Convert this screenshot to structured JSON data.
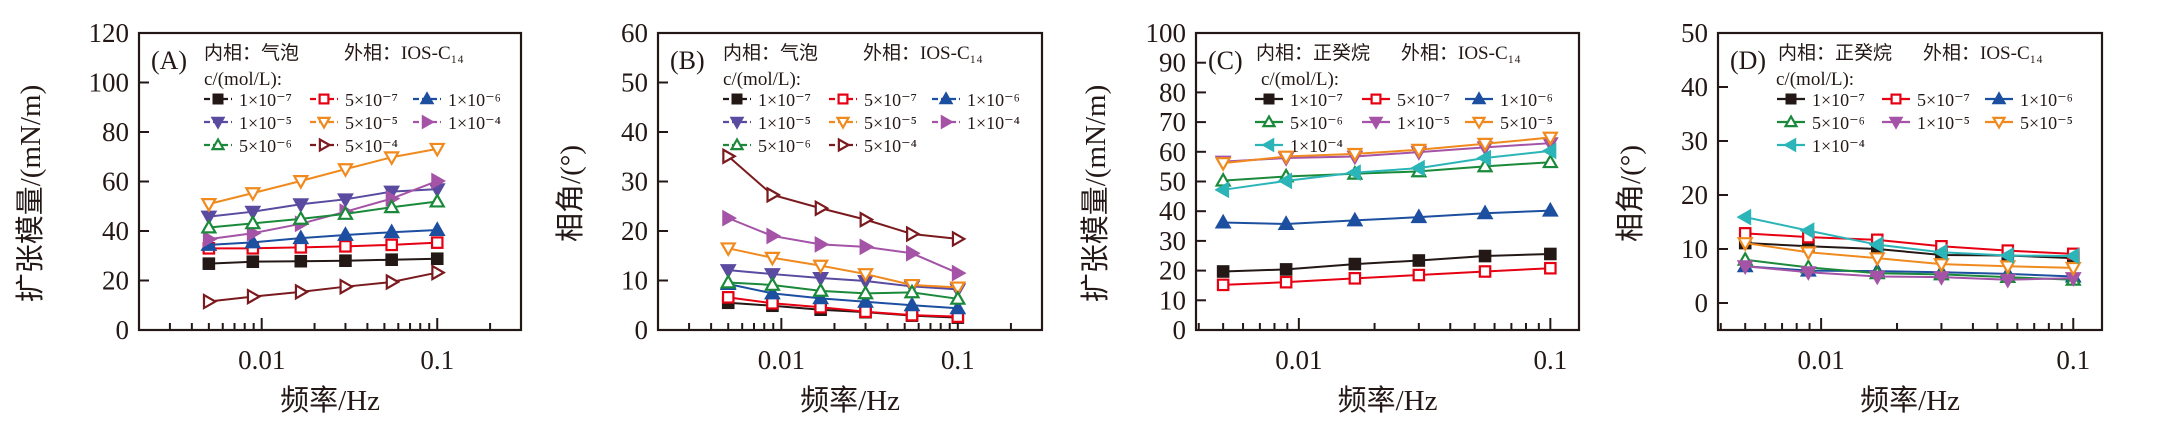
{
  "chart_data": [
    {
      "type": "line",
      "panel_label": "(A)",
      "inner_phase": "内相：气泡",
      "outer_phase": "外相：IOS-C₁₄",
      "legend_title": "c/(mol/L):",
      "xlabel": "频率/Hz",
      "ylabel": "扩张模量/(mN/m)",
      "xscale": "log",
      "xlim": [
        0.002,
        0.3
      ],
      "xticks": [
        0.01,
        0.1
      ],
      "xtick_labels": [
        "0.01",
        "0.1"
      ],
      "ylim": [
        0,
        120
      ],
      "yticks": [
        0,
        20,
        40,
        60,
        80,
        100,
        120
      ],
      "grid": false,
      "legend_position": "top",
      "x": [
        0.005,
        0.0089,
        0.0167,
        0.03,
        0.055,
        0.1
      ],
      "series": [
        {
          "name": "1×10⁻⁷",
          "color": "#231815",
          "marker": "square",
          "filled": true,
          "values": [
            26.8,
            27.6,
            27.8,
            28.0,
            28.4,
            28.8
          ]
        },
        {
          "name": "5×10⁻⁷",
          "color": "#e60012",
          "marker": "square",
          "filled": false,
          "values": [
            33.0,
            33.0,
            33.4,
            33.8,
            34.4,
            35.3
          ]
        },
        {
          "name": "1×10⁻⁶",
          "color": "#1d4fa0",
          "marker": "triangle-up",
          "filled": true,
          "values": [
            34.4,
            35.4,
            37.1,
            38.4,
            39.5,
            40.4
          ]
        },
        {
          "name": "1×10⁻⁵",
          "color": "#5a4aa0",
          "marker": "triangle-down",
          "filled": true,
          "values": [
            45.8,
            47.8,
            50.8,
            52.8,
            55.9,
            56.9
          ]
        },
        {
          "name": "5×10⁻⁵",
          "color": "#f08a1e",
          "marker": "triangle-down",
          "filled": false,
          "values": [
            50.9,
            55.3,
            60.2,
            65.0,
            69.8,
            73.2
          ]
        },
        {
          "name": "1×10⁻⁴",
          "color": "#a453a6",
          "marker": "triangle-right",
          "filled": true,
          "values": [
            36.7,
            39.1,
            42.9,
            47.8,
            53.1,
            60.2
          ]
        },
        {
          "name": "5×10⁻⁶",
          "color": "#1a8a3a",
          "marker": "triangle-up",
          "filled": false,
          "values": [
            41.4,
            43.1,
            44.9,
            46.9,
            49.6,
            51.9
          ]
        },
        {
          "name": "5×10⁻⁴",
          "color": "#7a1a1e",
          "marker": "triangle-right",
          "filled": false,
          "values": [
            11.5,
            13.5,
            15.4,
            17.5,
            19.4,
            23.2
          ]
        }
      ]
    },
    {
      "type": "line",
      "panel_label": "(B)",
      "inner_phase": "内相：气泡",
      "outer_phase": "外相：IOS-C₁₄",
      "legend_title": "c/(mol/L):",
      "xlabel": "频率/Hz",
      "ylabel": "相角/(°)",
      "xscale": "log",
      "xlim": [
        0.002,
        0.3
      ],
      "xticks": [
        0.01,
        0.1
      ],
      "xtick_labels": [
        "0.01",
        "0.1"
      ],
      "ylim": [
        0,
        60
      ],
      "yticks": [
        0,
        10,
        20,
        30,
        40,
        50,
        60
      ],
      "grid": false,
      "legend_position": "top",
      "x": [
        0.005,
        0.0089,
        0.0167,
        0.03,
        0.055,
        0.1
      ],
      "series": [
        {
          "name": "1×10⁻⁷",
          "color": "#231815",
          "marker": "square",
          "filled": true,
          "values": [
            5.5,
            4.9,
            4.1,
            3.6,
            2.9,
            2.5
          ]
        },
        {
          "name": "5×10⁻⁷",
          "color": "#e60012",
          "marker": "square",
          "filled": false,
          "values": [
            6.6,
            5.4,
            4.6,
            3.7,
            3.0,
            2.7
          ]
        },
        {
          "name": "1×10⁻⁶",
          "color": "#1d4fa0",
          "marker": "triangle-up",
          "filled": true,
          "values": [
            9.3,
            7.4,
            6.4,
            5.7,
            5.0,
            4.4
          ]
        },
        {
          "name": "1×10⁻⁵",
          "color": "#5a4aa0",
          "marker": "triangle-down",
          "filled": true,
          "values": [
            12.1,
            11.3,
            10.5,
            9.9,
            8.8,
            8.2
          ]
        },
        {
          "name": "5×10⁻⁵",
          "color": "#f08a1e",
          "marker": "triangle-down",
          "filled": false,
          "values": [
            16.5,
            14.6,
            13.0,
            11.3,
            9.1,
            8.6
          ]
        },
        {
          "name": "1×10⁻⁴",
          "color": "#a453a6",
          "marker": "triangle-right",
          "filled": true,
          "values": [
            22.6,
            19.0,
            17.3,
            16.8,
            15.5,
            11.5
          ]
        },
        {
          "name": "5×10⁻⁶",
          "color": "#1a8a3a",
          "marker": "triangle-up",
          "filled": false,
          "values": [
            9.6,
            9.1,
            7.9,
            7.4,
            7.6,
            6.3
          ]
        },
        {
          "name": "5×10⁻⁴",
          "color": "#7a1a1e",
          "marker": "triangle-right",
          "filled": false,
          "values": [
            35.1,
            27.3,
            24.6,
            22.3,
            19.4,
            18.4
          ]
        }
      ]
    },
    {
      "type": "line",
      "panel_label": "(C)",
      "inner_phase": "内相：正癸烷",
      "outer_phase": "外相：IOS-C₁₄",
      "legend_title": "c/(mol/L):",
      "xlabel": "频率/Hz",
      "ylabel": "扩张模量/(mN/m)",
      "xscale": "log",
      "xlim": [
        0.0039,
        0.13
      ],
      "xticks": [
        0.01,
        0.1
      ],
      "xtick_labels": [
        "0.01",
        "0.1"
      ],
      "ylim": [
        0,
        100
      ],
      "yticks": [
        0,
        10,
        20,
        30,
        40,
        50,
        60,
        70,
        80,
        90,
        100
      ],
      "grid": false,
      "legend_position": "top",
      "x": [
        0.005,
        0.0089,
        0.0167,
        0.03,
        0.055,
        0.1
      ],
      "series": [
        {
          "name": "1×10⁻⁷",
          "color": "#231815",
          "marker": "square",
          "filled": true,
          "values": [
            19.7,
            20.4,
            22.2,
            23.4,
            24.9,
            25.6
          ]
        },
        {
          "name": "5×10⁻⁷",
          "color": "#e60012",
          "marker": "square",
          "filled": false,
          "values": [
            15.2,
            16.1,
            17.4,
            18.5,
            19.7,
            20.8
          ]
        },
        {
          "name": "1×10⁻⁶",
          "color": "#1d4fa0",
          "marker": "triangle-up",
          "filled": true,
          "values": [
            36.2,
            35.7,
            36.9,
            38.0,
            39.3,
            40.2
          ]
        },
        {
          "name": "5×10⁻⁶",
          "color": "#1a8a3a",
          "marker": "triangle-up",
          "filled": false,
          "values": [
            50.3,
            51.7,
            52.6,
            53.4,
            55.1,
            56.5
          ]
        },
        {
          "name": "1×10⁻⁵",
          "color": "#a453a6",
          "marker": "triangle-down",
          "filled": true,
          "values": [
            56.7,
            57.9,
            58.4,
            59.9,
            61.5,
            62.9
          ]
        },
        {
          "name": "5×10⁻⁵",
          "color": "#f08a1e",
          "marker": "triangle-down",
          "filled": false,
          "values": [
            56.2,
            58.4,
            59.3,
            60.7,
            62.7,
            64.8
          ]
        },
        {
          "name": "1×10⁻⁴",
          "color": "#2bb5b8",
          "marker": "triangle-left",
          "filled": true,
          "values": [
            47.2,
            50.2,
            53.0,
            54.5,
            57.9,
            60.3
          ]
        }
      ]
    },
    {
      "type": "line",
      "panel_label": "(D)",
      "inner_phase": "内相：正癸烷",
      "outer_phase": "外相：IOS-C₁₄",
      "legend_title": "c/(mol/L):",
      "xlabel": "频率/Hz",
      "ylabel": "相角/(°)",
      "xscale": "log",
      "xlim": [
        0.0039,
        0.13
      ],
      "xticks": [
        0.01,
        0.1
      ],
      "xtick_labels": [
        "0.01",
        "0.1"
      ],
      "ylim": [
        -5,
        50
      ],
      "yticks": [
        0,
        10,
        20,
        30,
        40,
        50
      ],
      "grid": false,
      "legend_position": "top",
      "x": [
        0.005,
        0.0089,
        0.0167,
        0.03,
        0.055,
        0.1
      ],
      "series": [
        {
          "name": "1×10⁻⁷",
          "color": "#231815",
          "marker": "square",
          "filled": true,
          "values": [
            11.1,
            10.5,
            10.0,
            8.9,
            8.8,
            8.3
          ]
        },
        {
          "name": "5×10⁻⁷",
          "color": "#e60012",
          "marker": "square",
          "filled": false,
          "values": [
            12.9,
            12.2,
            11.7,
            10.5,
            9.7,
            9.1
          ]
        },
        {
          "name": "1×10⁻⁶",
          "color": "#1d4fa0",
          "marker": "triangle-up",
          "filled": true,
          "values": [
            6.8,
            6.0,
            5.9,
            5.7,
            5.4,
            4.9
          ]
        },
        {
          "name": "5×10⁻⁶",
          "color": "#1a8a3a",
          "marker": "triangle-up",
          "filled": false,
          "values": [
            8.0,
            6.6,
            5.5,
            5.3,
            4.8,
            4.3
          ]
        },
        {
          "name": "1×10⁻⁵",
          "color": "#a453a6",
          "marker": "triangle-down",
          "filled": true,
          "values": [
            6.8,
            5.7,
            4.9,
            4.8,
            4.3,
            4.6
          ]
        },
        {
          "name": "5×10⁻⁵",
          "color": "#f08a1e",
          "marker": "triangle-down",
          "filled": false,
          "values": [
            11.1,
            9.4,
            8.3,
            7.2,
            6.8,
            6.5
          ]
        },
        {
          "name": "1×10⁻⁴",
          "color": "#2bb5b8",
          "marker": "triangle-left",
          "filled": true,
          "values": [
            15.9,
            13.4,
            10.8,
            9.4,
            8.8,
            8.7
          ]
        }
      ]
    }
  ]
}
